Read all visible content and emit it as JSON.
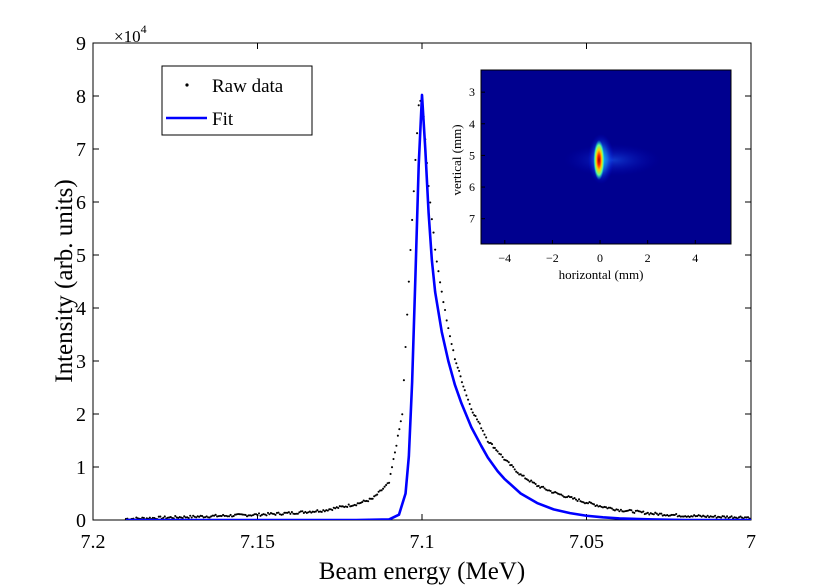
{
  "chart_data": {
    "type": "line",
    "title": "",
    "xlabel": "Beam energy (MeV)",
    "ylabel": "Intensity (arb. units)",
    "x_reversed": true,
    "xlim": [
      7.2,
      7.0
    ],
    "ylim": [
      0,
      9
    ],
    "y_exponent_label": "×10",
    "y_exponent_power": "4",
    "xticks": [
      7.2,
      7.15,
      7.1,
      7.05,
      7.0
    ],
    "xtick_labels": [
      "7.2",
      "7.15",
      "7.1",
      "7.05",
      "7"
    ],
    "yticks": [
      0,
      1,
      2,
      3,
      4,
      5,
      6,
      7,
      8,
      9
    ],
    "ytick_labels": [
      "0",
      "1",
      "2",
      "3",
      "4",
      "5",
      "6",
      "7",
      "8",
      "9"
    ],
    "legend_position": "top-left",
    "series": [
      {
        "name": "Raw data",
        "style": "dots",
        "color": "#000000",
        "x": [
          7.19,
          7.18,
          7.17,
          7.16,
          7.15,
          7.14,
          7.13,
          7.12,
          7.115,
          7.11,
          7.106,
          7.104,
          7.102,
          7.101,
          7.1,
          7.099,
          7.098,
          7.096,
          7.094,
          7.092,
          7.09,
          7.087,
          7.085,
          7.082,
          7.08,
          7.077,
          7.075,
          7.07,
          7.065,
          7.06,
          7.055,
          7.05,
          7.045,
          7.04,
          7.03,
          7.02,
          7.01,
          7.0
        ],
        "y": [
          0.02,
          0.04,
          0.06,
          0.08,
          0.1,
          0.13,
          0.18,
          0.3,
          0.4,
          0.7,
          2.0,
          4.5,
          6.8,
          7.8,
          8.0,
          7.2,
          6.3,
          5.1,
          4.3,
          3.6,
          3.05,
          2.45,
          2.1,
          1.75,
          1.5,
          1.3,
          1.15,
          0.85,
          0.65,
          0.52,
          0.42,
          0.33,
          0.25,
          0.19,
          0.12,
          0.08,
          0.06,
          0.05
        ]
      },
      {
        "name": "Fit",
        "style": "line",
        "color": "#0000ff",
        "x": [
          7.19,
          7.15,
          7.12,
          7.11,
          7.107,
          7.105,
          7.104,
          7.103,
          7.102,
          7.101,
          7.1,
          7.099,
          7.098,
          7.097,
          7.096,
          7.094,
          7.092,
          7.09,
          7.088,
          7.085,
          7.082,
          7.08,
          7.077,
          7.075,
          7.07,
          7.065,
          7.06,
          7.055,
          7.05,
          7.045,
          7.04,
          7.03,
          7.02,
          7.0
        ],
        "y": [
          0,
          0,
          0,
          0.01,
          0.1,
          0.5,
          1.2,
          2.6,
          4.6,
          6.7,
          8.02,
          7.0,
          5.8,
          4.9,
          4.3,
          3.55,
          3.0,
          2.55,
          2.2,
          1.75,
          1.4,
          1.18,
          0.92,
          0.78,
          0.5,
          0.32,
          0.2,
          0.13,
          0.08,
          0.05,
          0.03,
          0.01,
          0.0,
          0.0
        ]
      }
    ],
    "inset": {
      "type": "heatmap",
      "xlabel": "horizontal (mm)",
      "ylabel": "vertical (mm)",
      "xlim": [
        -5,
        5.5
      ],
      "ylim": [
        2.3,
        7.8
      ],
      "xtick_labels": [
        "−4",
        "−2",
        "0",
        "2",
        "4"
      ],
      "xticks": [
        -4,
        -2,
        0,
        2,
        4
      ],
      "ytick_labels": [
        "3",
        "4",
        "5",
        "6",
        "7"
      ],
      "yticks": [
        3,
        4,
        5,
        6,
        7
      ],
      "spot_center": [
        0.1,
        5.0
      ],
      "colormap": "jet"
    }
  }
}
